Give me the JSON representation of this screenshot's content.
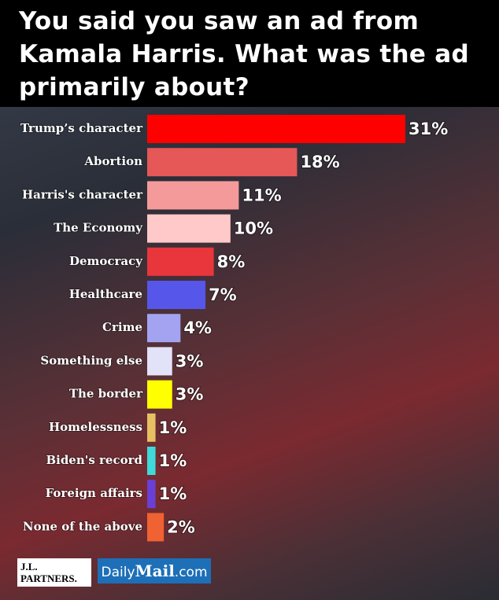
{
  "chart_data": {
    "type": "bar",
    "orientation": "horizontal",
    "title": "You said you saw an ad from Kamala Harris. What was the ad primarily about?",
    "categories": [
      "Trump’s character",
      "Abortion",
      "Harris's character",
      "The Economy",
      "Democracy",
      "Healthcare",
      "Crime",
      "Something else",
      "The border",
      "Homelessness",
      "Biden's record",
      "Foreign affairs",
      "None of the above"
    ],
    "values": [
      31,
      18,
      11,
      10,
      8,
      7,
      4,
      3,
      3,
      1,
      1,
      1,
      2
    ],
    "value_labels": [
      "31%",
      "18%",
      "11%",
      "10%",
      "8%",
      "7%",
      "4%",
      "3%",
      "3%",
      "1%",
      "1%",
      "1%",
      "2%"
    ],
    "colors": [
      "#ff0000",
      "#e65757",
      "#f59a9a",
      "#ffc9c9",
      "#e8363c",
      "#5656ea",
      "#a3a3f2",
      "#e2e2f8",
      "#ffff00",
      "#e6c063",
      "#3fd9d9",
      "#6a3fd6",
      "#f06232"
    ]
  },
  "footer": {
    "logo_1": [
      "J.L.",
      "PARTNERS."
    ],
    "logo_2": [
      "Daily",
      "Mail",
      ".com"
    ]
  }
}
